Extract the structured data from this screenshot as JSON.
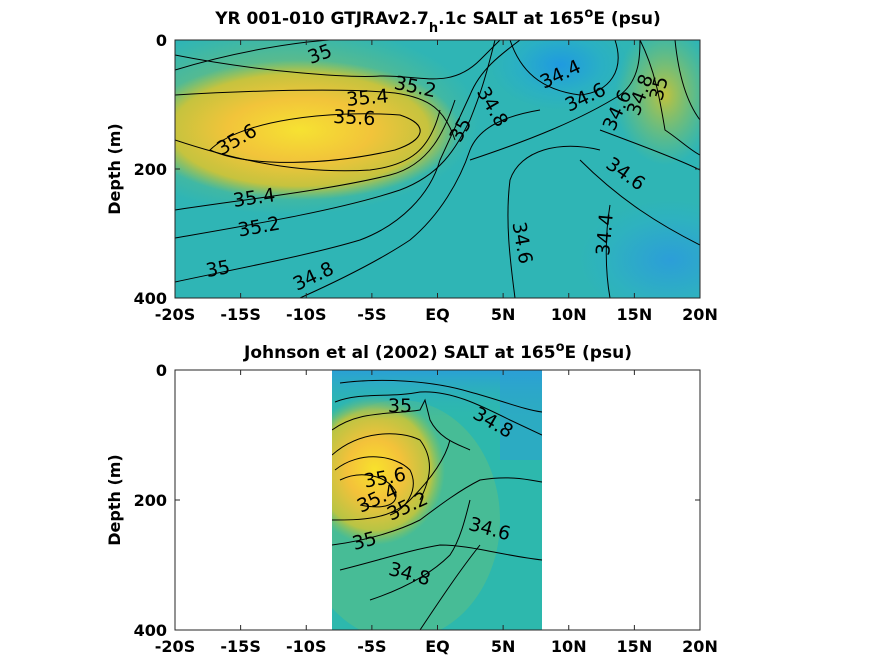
{
  "chart_data": [
    {
      "type": "heatmap",
      "title": "YR 001-010 GTJRAv2.7",
      "title_subscript": "h",
      "title_rest": ".1c SALT at 165",
      "title_superscript": "o",
      "title_end": "E (psu)",
      "ylabel": "Depth (m)",
      "xlabel": "",
      "x_ticks": [
        "-20S",
        "-15S",
        "-10S",
        "-5S",
        "EQ",
        "5N",
        "10N",
        "15N",
        "20N"
      ],
      "y_ticks": [
        "0",
        "200",
        "400"
      ],
      "xlim": [
        -20,
        20
      ],
      "ylim": [
        0,
        400
      ],
      "contour_labels": [
        "35",
        "35.2",
        "35.4",
        "35.6",
        "35.6",
        "35.4",
        "35.2",
        "35",
        "34.8",
        "35",
        "34.8",
        "34.6",
        "34.4",
        "34.6",
        "34.8",
        "35",
        "34.6",
        "34.4"
      ]
    },
    {
      "type": "heatmap",
      "title": "Johnson et al (2002) SALT at 165",
      "title_superscript": "o",
      "title_end": "E (psu)",
      "ylabel": "Depth (m)",
      "xlabel": "",
      "x_ticks": [
        "-20S",
        "-15S",
        "-10S",
        "-5S",
        "EQ",
        "5N",
        "10N",
        "15N",
        "20N"
      ],
      "y_ticks": [
        "0",
        "200",
        "400"
      ],
      "xlim": [
        -20,
        20
      ],
      "ylim": [
        0,
        400
      ],
      "data_extent_x": [
        -8,
        8
      ],
      "contour_labels": [
        "35",
        "34.8",
        "35.6",
        "35.4",
        "35.2",
        "34.6",
        "35",
        "34.8"
      ]
    }
  ],
  "colors": {
    "high_salinity": "#f5e030",
    "mid_salinity": "#2cb8a0",
    "low_salinity": "#2a8ad8"
  }
}
